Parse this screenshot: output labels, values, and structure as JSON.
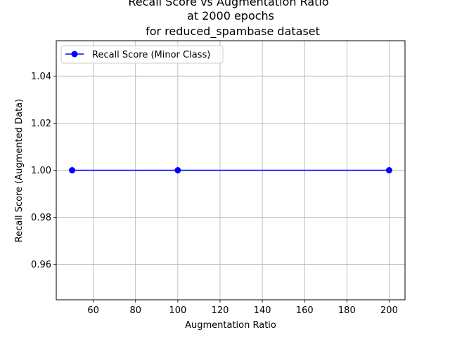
{
  "chart_data": {
    "type": "line",
    "title": [
      "Recall Score vs Augmentation Ratio",
      "at 2000 epochs",
      "for reduced_spambase dataset"
    ],
    "xlabel": "Augmentation Ratio",
    "ylabel": "Recall Score (Augmented Data)",
    "xlim": [
      42.5,
      207.5
    ],
    "ylim": [
      0.945,
      1.055
    ],
    "x_ticks": [
      60,
      80,
      100,
      120,
      140,
      160,
      180,
      200
    ],
    "x_tick_labels": [
      "60",
      "80",
      "100",
      "120",
      "140",
      "160",
      "180",
      "200"
    ],
    "y_ticks": [
      0.96,
      0.98,
      1.0,
      1.02,
      1.04
    ],
    "y_tick_labels": [
      "0.96",
      "0.98",
      "1.00",
      "1.02",
      "1.04"
    ],
    "grid": true,
    "legend_position": "top-left",
    "series": [
      {
        "name": "Recall Score (Minor Class)",
        "color": "#0000ff",
        "marker": "circle",
        "x": [
          50,
          100,
          200
        ],
        "y": [
          1.0,
          1.0,
          1.0
        ]
      }
    ]
  }
}
